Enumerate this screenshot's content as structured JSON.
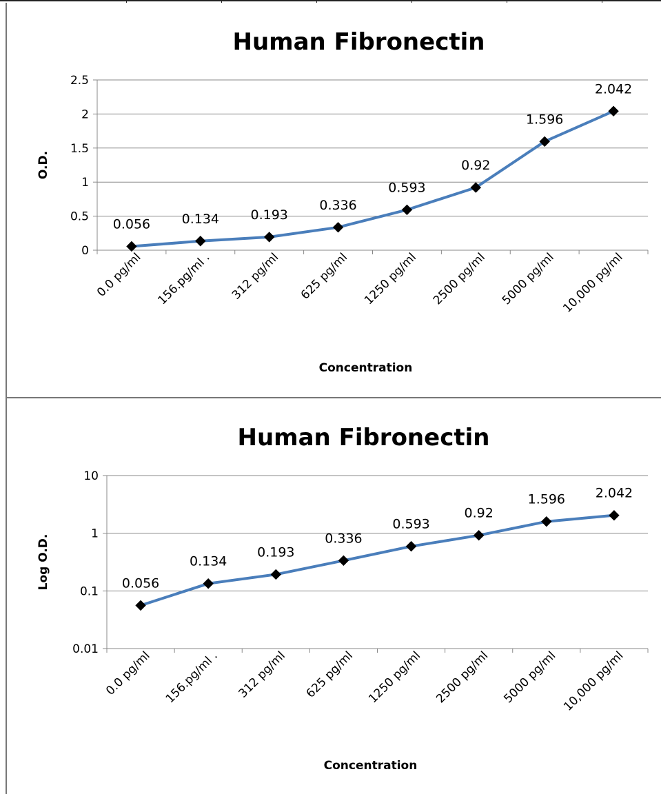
{
  "chart_data": [
    {
      "type": "line",
      "title": "Human Fibronectin",
      "xlabel": "Concentration",
      "ylabel": "O.D.",
      "yscale": "linear",
      "ylim": [
        0,
        2.5
      ],
      "yticks": [
        "0",
        "0.5",
        "1",
        "1.5",
        "2",
        "2.5"
      ],
      "ytick_values": [
        0,
        0.5,
        1,
        1.5,
        2,
        2.5
      ],
      "grid": true,
      "categories": [
        "0.0 pg/ml",
        "156.pg/ml .",
        "312 pg/ml",
        "625 pg/ml",
        "1250 pg/ml",
        "2500 pg/ml",
        "5000 pg/ml",
        "10,000 pg/ml"
      ],
      "series": [
        {
          "values": [
            0.056,
            0.134,
            0.193,
            0.336,
            0.593,
            0.92,
            1.596,
            2.042
          ]
        }
      ],
      "data_labels": [
        "0.056",
        "0.134",
        "0.193",
        "0.336",
        "0.593",
        "0.92",
        "1.596",
        "2.042"
      ],
      "line_color": "#4a7ebb",
      "marker_color": "#000000"
    },
    {
      "type": "line",
      "title": "Human Fibronectin",
      "xlabel": "Concentration",
      "ylabel": "Log O.D.",
      "yscale": "log",
      "ylim": [
        0.01,
        10
      ],
      "yticks": [
        "0.01",
        "0.1",
        "1",
        "10"
      ],
      "ytick_values": [
        0.01,
        0.1,
        1,
        10
      ],
      "grid": true,
      "categories": [
        "0.0 pg/ml",
        "156.pg/ml .",
        "312 pg/ml",
        "625 pg/ml",
        "1250 pg/ml",
        "2500 pg/ml",
        "5000 pg/ml",
        "10,000 pg/ml"
      ],
      "series": [
        {
          "values": [
            0.056,
            0.134,
            0.193,
            0.336,
            0.593,
            0.92,
            1.596,
            2.042
          ]
        }
      ],
      "data_labels": [
        "0.056",
        "0.134",
        "0.193",
        "0.336",
        "0.593",
        "0.92",
        "1.596",
        "2.042"
      ],
      "line_color": "#4a7ebb",
      "marker_color": "#000000"
    }
  ]
}
